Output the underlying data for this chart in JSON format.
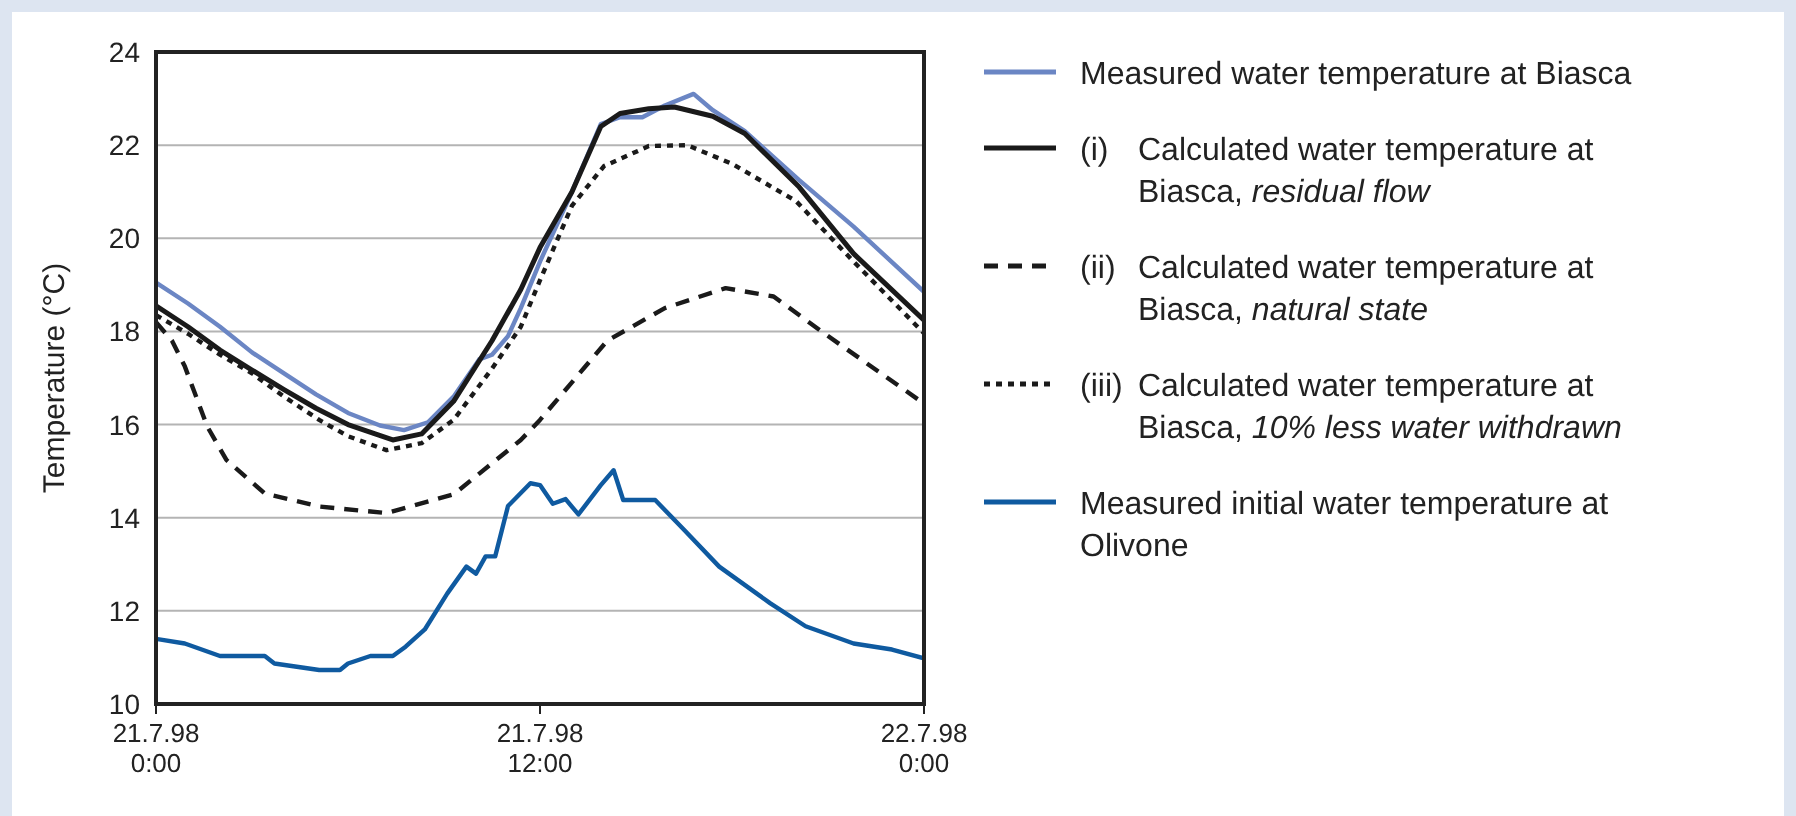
{
  "chart_data": {
    "type": "line",
    "ylabel": "Temperature (°C)",
    "xlim": [
      "1998-07-21T00:00",
      "1998-07-22T00:00"
    ],
    "xticks": [
      {
        "value": "1998-07-21T00:00",
        "label": "21.7.98\n0:00"
      },
      {
        "value": "1998-07-21T12:00",
        "label": "21.7.98\n12:00"
      },
      {
        "value": "1998-07-22T00:00",
        "label": "22.7.98\n0:00"
      }
    ],
    "ylim": [
      10,
      24
    ],
    "yticks": [
      10,
      12,
      14,
      16,
      18,
      20,
      22,
      24
    ],
    "grid": "y",
    "legend": "right",
    "series": [
      {
        "name": "Measured water temperature at Biasca",
        "color": "#6b86c4",
        "line_style": "solid",
        "x": [
          "1998-07-21T00:00",
          "1998-07-21T01:00",
          "1998-07-21T02:00",
          "1998-07-21T03:00",
          "1998-07-21T04:00",
          "1998-07-21T05:00",
          "1998-07-21T06:00",
          "1998-07-21T07:00",
          "1998-07-21T07:45",
          "1998-07-21T08:30",
          "1998-07-21T09:18",
          "1998-07-21T10:06",
          "1998-07-21T10:30",
          "1998-07-21T11:00",
          "1998-07-21T11:24",
          "1998-07-21T12:00",
          "1998-07-21T13:00",
          "1998-07-21T13:54",
          "1998-07-21T14:30",
          "1998-07-21T15:12",
          "1998-07-21T15:54",
          "1998-07-21T16:48",
          "1998-07-21T17:24",
          "1998-07-21T18:24",
          "1998-07-21T20:06",
          "1998-07-21T21:48",
          "1998-07-22T00:00"
        ],
        "values": [
          19.05,
          18.6,
          18.1,
          17.55,
          17.1,
          16.65,
          16.25,
          15.98,
          15.88,
          16.05,
          16.6,
          17.4,
          17.5,
          17.9,
          18.5,
          19.5,
          21.0,
          22.45,
          22.6,
          22.6,
          22.85,
          23.1,
          22.75,
          22.3,
          21.25,
          20.25,
          18.85
        ]
      },
      {
        "name": "(i) Calculated water temperature at Biasca, residual flow",
        "color": "#1a1a1a",
        "line_style": "solid",
        "x": [
          "1998-07-21T00:00",
          "1998-07-21T01:00",
          "1998-07-21T02:00",
          "1998-07-21T03:00",
          "1998-07-21T04:00",
          "1998-07-21T05:00",
          "1998-07-21T06:00",
          "1998-07-21T07:24",
          "1998-07-21T08:18",
          "1998-07-21T09:18",
          "1998-07-21T10:30",
          "1998-07-21T11:24",
          "1998-07-21T12:00",
          "1998-07-21T13:00",
          "1998-07-21T13:54",
          "1998-07-21T14:30",
          "1998-07-21T15:24",
          "1998-07-21T16:12",
          "1998-07-21T17:24",
          "1998-07-21T18:24",
          "1998-07-21T20:06",
          "1998-07-21T21:48",
          "1998-07-22T00:00"
        ],
        "values": [
          18.55,
          18.1,
          17.6,
          17.17,
          16.75,
          16.35,
          16.0,
          15.67,
          15.8,
          16.5,
          17.8,
          18.9,
          19.8,
          21.0,
          22.4,
          22.68,
          22.78,
          22.82,
          22.62,
          22.25,
          21.1,
          19.67,
          18.24
        ]
      },
      {
        "name": "(ii) Calculated water temperature at Biasca, natural state",
        "color": "#1a1a1a",
        "line_style": "dashed",
        "x": [
          "1998-07-21T00:00",
          "1998-07-21T00:30",
          "1998-07-21T00:54",
          "1998-07-21T01:36",
          "1998-07-21T02:12",
          "1998-07-21T03:24",
          "1998-07-21T05:06",
          "1998-07-21T07:12",
          "1998-07-21T09:18",
          "1998-07-21T11:24",
          "1998-07-21T12:00",
          "1998-07-21T14:06",
          "1998-07-21T15:54",
          "1998-07-21T17:48",
          "1998-07-21T19:18",
          "1998-07-21T20:54",
          "1998-07-22T00:00"
        ],
        "values": [
          18.2,
          17.8,
          17.25,
          15.96,
          15.24,
          14.52,
          14.24,
          14.1,
          14.5,
          15.67,
          16.1,
          17.8,
          18.5,
          18.93,
          18.75,
          17.95,
          16.45
        ]
      },
      {
        "name": "(iii) Calculated water temperature at Biasca, 10% less water withdrawn",
        "color": "#1a1a1a",
        "line_style": "dotted",
        "x": [
          "1998-07-21T00:00",
          "1998-07-21T01:00",
          "1998-07-21T02:00",
          "1998-07-21T03:00",
          "1998-07-21T04:00",
          "1998-07-21T05:06",
          "1998-07-21T06:00",
          "1998-07-21T07:12",
          "1998-07-21T08:18",
          "1998-07-21T09:18",
          "1998-07-21T10:30",
          "1998-07-21T11:24",
          "1998-07-21T12:00",
          "1998-07-21T13:00",
          "1998-07-21T14:00",
          "1998-07-21T15:24",
          "1998-07-21T16:36",
          "1998-07-21T18:00",
          "1998-07-21T20:00",
          "1998-07-21T21:48",
          "1998-07-22T00:00"
        ],
        "values": [
          18.35,
          17.95,
          17.5,
          17.1,
          16.6,
          16.1,
          15.75,
          15.45,
          15.6,
          16.1,
          17.2,
          18.1,
          19.1,
          20.7,
          21.55,
          21.98,
          22.0,
          21.6,
          20.8,
          19.5,
          17.96
        ]
      },
      {
        "name": "Measured initial water temperature at Olivone",
        "color": "#0f5aa0",
        "line_style": "solid",
        "x": [
          "1998-07-21T00:00",
          "1998-07-21T00:54",
          "1998-07-21T02:00",
          "1998-07-21T03:24",
          "1998-07-21T03:42",
          "1998-07-21T05:06",
          "1998-07-21T05:45",
          "1998-07-21T06:00",
          "1998-07-21T06:42",
          "1998-07-21T07:24",
          "1998-07-21T07:48",
          "1998-07-21T08:24",
          "1998-07-21T09:06",
          "1998-07-21T09:42",
          "1998-07-21T10:00",
          "1998-07-21T10:18",
          "1998-07-21T10:36",
          "1998-07-21T11:00",
          "1998-07-21T11:42",
          "1998-07-21T12:00",
          "1998-07-21T12:24",
          "1998-07-21T12:48",
          "1998-07-21T13:12",
          "1998-07-21T13:54",
          "1998-07-21T14:18",
          "1998-07-21T14:36",
          "1998-07-21T15:36",
          "1998-07-21T16:30",
          "1998-07-21T17:36",
          "1998-07-21T19:12",
          "1998-07-21T20:18",
          "1998-07-21T21:48",
          "1998-07-21T23:00",
          "1998-07-22T00:00"
        ],
        "values": [
          11.4,
          11.3,
          11.03,
          11.03,
          10.87,
          10.73,
          10.73,
          10.87,
          11.03,
          11.03,
          11.23,
          11.6,
          12.37,
          12.95,
          12.8,
          13.17,
          13.17,
          14.25,
          14.74,
          14.7,
          14.3,
          14.4,
          14.07,
          14.7,
          15.02,
          14.38,
          14.38,
          13.74,
          12.95,
          12.16,
          11.67,
          11.3,
          11.17,
          10.98
        ]
      }
    ]
  }
}
